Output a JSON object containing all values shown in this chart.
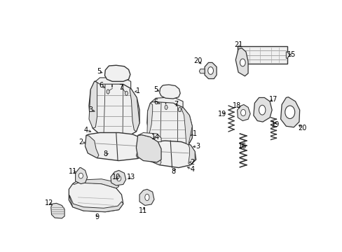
{
  "bg_color": "#ffffff",
  "fig_width": 4.89,
  "fig_height": 3.6,
  "dpi": 100,
  "line_color": "#333333",
  "label_color": "#000000",
  "font_size": 7.0,
  "fill_light": "#f0f0f0",
  "fill_mid": "#e0e0e0",
  "fill_dark": "#cccccc",
  "fill_white": "#ffffff"
}
